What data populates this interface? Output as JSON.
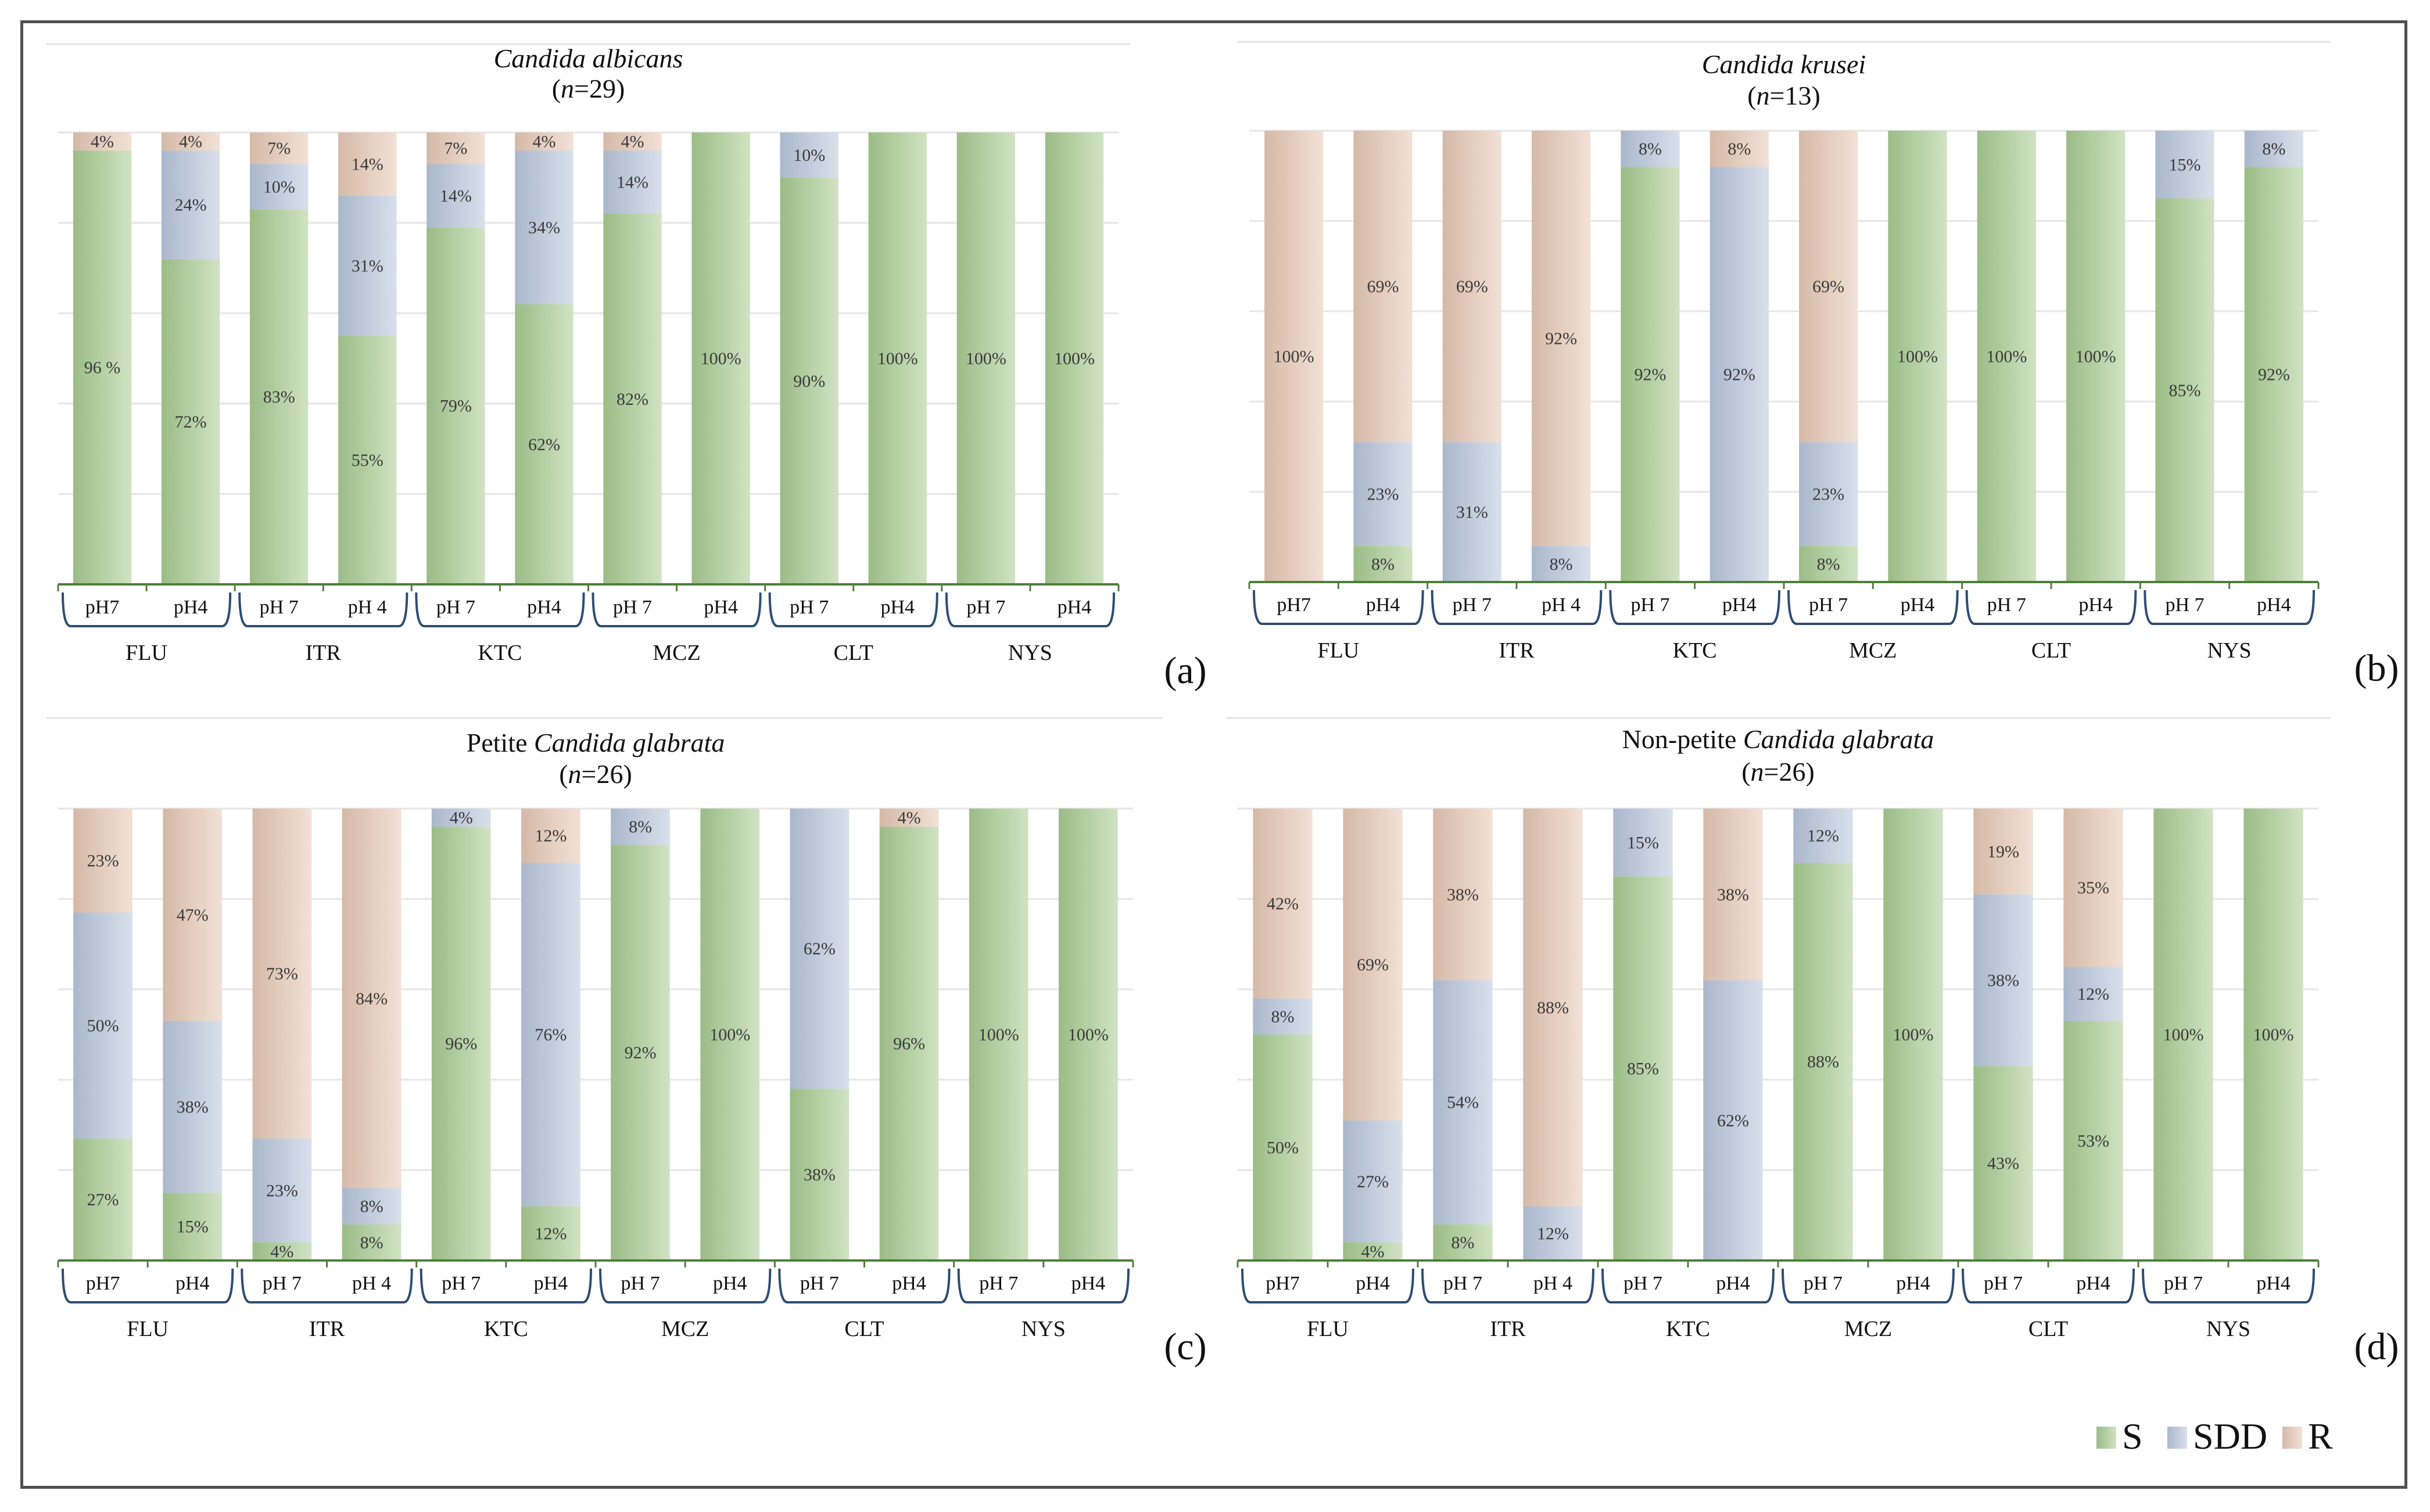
{
  "colors": {
    "S": "#a9cc92",
    "SDD": "#b9c7dd",
    "R": "#e8c9b5",
    "axis": "#4f7f3a",
    "bracket": "#2e4d72",
    "grid": "#e6e6e6",
    "frame": "#505050"
  },
  "legend": {
    "items": [
      {
        "key": "S",
        "label": "S"
      },
      {
        "key": "SDD",
        "label": "SDD"
      },
      {
        "key": "R",
        "label": "R"
      }
    ]
  },
  "chart_data": [
    {
      "id": "a",
      "type": "bar",
      "stacked": true,
      "title_prefix": "",
      "title_italic": "Candida albicans",
      "n_text": "29",
      "panel_label": "(a)",
      "drugs": [
        "FLU",
        "ITR",
        "KTC",
        "MCZ",
        "CLT",
        "NYS"
      ],
      "bars": [
        {
          "drug": "FLU",
          "ph": "pH7",
          "S": 96,
          "SDD": 0,
          "R": 4,
          "labels": {
            "S": "96 %",
            "R": "4%"
          }
        },
        {
          "drug": "FLU",
          "ph": "pH4",
          "S": 72,
          "SDD": 24,
          "R": 4,
          "labels": {
            "S": "72%",
            "SDD": "24%",
            "R": "4%"
          }
        },
        {
          "drug": "ITR",
          "ph": "pH 7",
          "S": 83,
          "SDD": 10,
          "R": 7,
          "labels": {
            "S": "83%",
            "SDD": "10%",
            "R": "7%"
          }
        },
        {
          "drug": "ITR",
          "ph": "pH 4",
          "S": 55,
          "SDD": 31,
          "R": 14,
          "labels": {
            "S": "55%",
            "SDD": "31%",
            "R": "14%"
          }
        },
        {
          "drug": "KTC",
          "ph": "pH 7",
          "S": 79,
          "SDD": 14,
          "R": 7,
          "labels": {
            "S": "79%",
            "SDD": "14%",
            "R": "7%"
          }
        },
        {
          "drug": "KTC",
          "ph": "pH4",
          "S": 62,
          "SDD": 34,
          "R": 4,
          "labels": {
            "S": "62%",
            "SDD": "34%",
            "R": "4%"
          }
        },
        {
          "drug": "MCZ",
          "ph": "pH 7",
          "S": 82,
          "SDD": 14,
          "R": 4,
          "labels": {
            "S": "82%",
            "SDD": "14%",
            "R": "4%"
          }
        },
        {
          "drug": "MCZ",
          "ph": "pH4",
          "S": 100,
          "SDD": 0,
          "R": 0,
          "labels": {
            "S": "100%"
          }
        },
        {
          "drug": "CLT",
          "ph": "pH 7",
          "S": 90,
          "SDD": 10,
          "R": 0,
          "labels": {
            "S": "90%",
            "SDD": "10%"
          }
        },
        {
          "drug": "CLT",
          "ph": "pH4",
          "S": 100,
          "SDD": 0,
          "R": 0,
          "labels": {
            "S": "100%"
          }
        },
        {
          "drug": "NYS",
          "ph": "pH 7",
          "S": 100,
          "SDD": 0,
          "R": 0,
          "labels": {
            "S": "100%"
          }
        },
        {
          "drug": "NYS",
          "ph": "pH4",
          "S": 100,
          "SDD": 0,
          "R": 0,
          "labels": {
            "S": "100%"
          }
        }
      ]
    },
    {
      "id": "b",
      "type": "bar",
      "stacked": true,
      "title_prefix": "",
      "title_italic": "Candida krusei",
      "n_text": "13",
      "panel_label": "(b)",
      "drugs": [
        "FLU",
        "ITR",
        "KTC",
        "MCZ",
        "CLT",
        "NYS"
      ],
      "bars": [
        {
          "drug": "FLU",
          "ph": "pH7",
          "S": 0,
          "SDD": 0,
          "R": 100,
          "labels": {
            "R": "100%"
          }
        },
        {
          "drug": "FLU",
          "ph": "pH4",
          "S": 8,
          "SDD": 23,
          "R": 69,
          "labels": {
            "S": "8%",
            "SDD": "23%",
            "R": "69%"
          }
        },
        {
          "drug": "ITR",
          "ph": "pH 7",
          "S": 0,
          "SDD": 31,
          "R": 69,
          "labels": {
            "SDD": "31%",
            "R": "69%"
          }
        },
        {
          "drug": "ITR",
          "ph": "pH 4",
          "S": 0,
          "SDD": 8,
          "R": 92,
          "labels": {
            "SDD": "8%",
            "R": "92%"
          }
        },
        {
          "drug": "KTC",
          "ph": "pH 7",
          "S": 92,
          "SDD": 8,
          "R": 0,
          "labels": {
            "S": "92%",
            "SDD": "8%"
          }
        },
        {
          "drug": "KTC",
          "ph": "pH4",
          "S": 0,
          "SDD": 92,
          "R": 8,
          "labels": {
            "SDD": "92%",
            "R": "8%"
          }
        },
        {
          "drug": "MCZ",
          "ph": "pH 7",
          "S": 8,
          "SDD": 23,
          "R": 69,
          "labels": {
            "S": "8%",
            "SDD": "23%",
            "R": "69%"
          }
        },
        {
          "drug": "MCZ",
          "ph": "pH4",
          "S": 100,
          "SDD": 0,
          "R": 0,
          "labels": {
            "S": "100%"
          }
        },
        {
          "drug": "CLT",
          "ph": "pH 7",
          "S": 100,
          "SDD": 0,
          "R": 0,
          "labels": {
            "S": "100%"
          }
        },
        {
          "drug": "CLT",
          "ph": "pH4",
          "S": 100,
          "SDD": 0,
          "R": 0,
          "labels": {
            "S": "100%"
          }
        },
        {
          "drug": "NYS",
          "ph": "pH 7",
          "S": 85,
          "SDD": 15,
          "R": 0,
          "labels": {
            "S": "85%",
            "SDD": "15%"
          }
        },
        {
          "drug": "NYS",
          "ph": "pH4",
          "S": 92,
          "SDD": 8,
          "R": 0,
          "labels": {
            "S": "92%",
            "SDD": "8%"
          }
        }
      ]
    },
    {
      "id": "c",
      "type": "bar",
      "stacked": true,
      "title_prefix": "Petite ",
      "title_italic": "Candida glabrata",
      "n_text": "26",
      "panel_label": "(c)",
      "drugs": [
        "FLU",
        "ITR",
        "KTC",
        "MCZ",
        "CLT",
        "NYS"
      ],
      "bars": [
        {
          "drug": "FLU",
          "ph": "pH7",
          "S": 27,
          "SDD": 50,
          "R": 23,
          "labels": {
            "S": "27%",
            "SDD": "50%",
            "R": "23%"
          }
        },
        {
          "drug": "FLU",
          "ph": "pH4",
          "S": 15,
          "SDD": 38,
          "R": 47,
          "labels": {
            "S": "15%",
            "SDD": "38%",
            "R": "47%"
          }
        },
        {
          "drug": "ITR",
          "ph": "pH 7",
          "S": 4,
          "SDD": 23,
          "R": 73,
          "labels": {
            "S": "4%",
            "SDD": "23%",
            "R": "73%"
          }
        },
        {
          "drug": "ITR",
          "ph": "pH 4",
          "S": 8,
          "SDD": 8,
          "R": 84,
          "labels": {
            "S": "8%",
            "SDD": "8%",
            "R": "84%"
          }
        },
        {
          "drug": "KTC",
          "ph": "pH 7",
          "S": 96,
          "SDD": 4,
          "R": 0,
          "labels": {
            "S": "96%",
            "SDD": "4%"
          }
        },
        {
          "drug": "KTC",
          "ph": "pH4",
          "S": 12,
          "SDD": 76,
          "R": 12,
          "labels": {
            "S": "12%",
            "SDD": "76%",
            "R": "12%"
          }
        },
        {
          "drug": "MCZ",
          "ph": "pH 7",
          "S": 92,
          "SDD": 8,
          "R": 0,
          "labels": {
            "S": "92%",
            "SDD": "8%"
          }
        },
        {
          "drug": "MCZ",
          "ph": "pH4",
          "S": 100,
          "SDD": 0,
          "R": 0,
          "labels": {
            "S": "100%"
          }
        },
        {
          "drug": "CLT",
          "ph": "pH 7",
          "S": 38,
          "SDD": 62,
          "R": 0,
          "labels": {
            "S": "38%",
            "SDD": "62%"
          }
        },
        {
          "drug": "CLT",
          "ph": "pH4",
          "S": 96,
          "SDD": 0,
          "R": 4,
          "labels": {
            "S": "96%",
            "R": "4%"
          }
        },
        {
          "drug": "NYS",
          "ph": "pH 7",
          "S": 100,
          "SDD": 0,
          "R": 0,
          "labels": {
            "S": "100%"
          }
        },
        {
          "drug": "NYS",
          "ph": "pH4",
          "S": 100,
          "SDD": 0,
          "R": 0,
          "labels": {
            "S": "100%"
          }
        }
      ]
    },
    {
      "id": "d",
      "type": "bar",
      "stacked": true,
      "title_prefix": "Non-petite ",
      "title_italic": "Candida glabrata",
      "n_text": "26",
      "panel_label": "(d)",
      "drugs": [
        "FLU",
        "ITR",
        "KTC",
        "MCZ",
        "CLT",
        "NYS"
      ],
      "bars": [
        {
          "drug": "FLU",
          "ph": "pH7",
          "S": 50,
          "SDD": 8,
          "R": 42,
          "labels": {
            "S": "50%",
            "SDD": "8%",
            "R": "42%"
          }
        },
        {
          "drug": "FLU",
          "ph": "pH4",
          "S": 4,
          "SDD": 27,
          "R": 69,
          "labels": {
            "S": "4%",
            "SDD": "27%",
            "R": "69%"
          }
        },
        {
          "drug": "ITR",
          "ph": "pH 7",
          "S": 8,
          "SDD": 54,
          "R": 38,
          "labels": {
            "S": "8%",
            "SDD": "54%",
            "R": "38%"
          }
        },
        {
          "drug": "ITR",
          "ph": "pH 4",
          "S": 0,
          "SDD": 12,
          "R": 88,
          "labels": {
            "SDD": "12%",
            "R": "88%"
          }
        },
        {
          "drug": "KTC",
          "ph": "pH 7",
          "S": 85,
          "SDD": 15,
          "R": 0,
          "labels": {
            "S": "85%",
            "SDD": "15%"
          }
        },
        {
          "drug": "KTC",
          "ph": "pH4",
          "S": 0,
          "SDD": 62,
          "R": 38,
          "labels": {
            "SDD": "62%",
            "R": "38%"
          }
        },
        {
          "drug": "MCZ",
          "ph": "pH 7",
          "S": 88,
          "SDD": 12,
          "R": 0,
          "labels": {
            "S": "88%",
            "SDD": "12%"
          }
        },
        {
          "drug": "MCZ",
          "ph": "pH4",
          "S": 100,
          "SDD": 0,
          "R": 0,
          "labels": {
            "S": "100%"
          }
        },
        {
          "drug": "CLT",
          "ph": "pH 7",
          "S": 43,
          "SDD": 38,
          "R": 19,
          "labels": {
            "S": "43%",
            "SDD": "38%",
            "R": "19%"
          }
        },
        {
          "drug": "CLT",
          "ph": "pH4",
          "S": 53,
          "SDD": 12,
          "R": 35,
          "labels": {
            "S": "53%",
            "SDD": "12%",
            "R": "35%"
          }
        },
        {
          "drug": "NYS",
          "ph": "pH 7",
          "S": 100,
          "SDD": 0,
          "R": 0,
          "labels": {
            "S": "100%"
          }
        },
        {
          "drug": "NYS",
          "ph": "pH4",
          "S": 100,
          "SDD": 0,
          "R": 0,
          "labels": {
            "S": "100%"
          }
        }
      ]
    }
  ]
}
